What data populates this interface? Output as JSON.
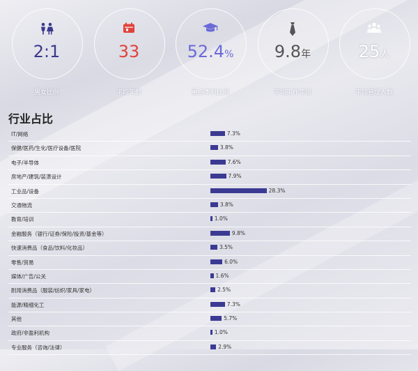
{
  "stats": [
    {
      "icon": "gender-icon",
      "value": "2:1",
      "unit": "",
      "label": "男女比例",
      "color": "#3a3a8c"
    },
    {
      "icon": "calendar-icon",
      "value": "33",
      "unit": "",
      "label": "平均年龄",
      "color": "#e0423c"
    },
    {
      "icon": "graduation-cap-icon",
      "value": "52.4",
      "unit": "%",
      "label": "重点本科比例",
      "color": "#6a6ad8"
    },
    {
      "icon": "tie-icon",
      "value": "9.8",
      "unit": "年",
      "label": "平均工作年限",
      "color": "#555555"
    },
    {
      "icon": "team-icon",
      "value": "25",
      "unit": "人",
      "label": "平均管理人数",
      "color": "#ffffff"
    }
  ],
  "accent_color": "#3b3a93",
  "chart_data": {
    "type": "bar",
    "title": "行业占比",
    "orientation": "horizontal",
    "categories": [
      "IT/网络",
      "保健/医药/生化/医疗设备/医院",
      "电子/半导体",
      "房地产/建筑/装潢设计",
      "工业品/设备",
      "交通物流",
      "教育/培训",
      "金融服务（银行/证券/保险/投资/基金等）",
      "快速消费品（食品/饮料/化妆品）",
      "零售/贸易",
      "媒体/广告/公关",
      "耐用消费品（服装/纺织/家具/家电）",
      "能源/精细化工",
      "其他",
      "政府/非盈利机构",
      "专业服务（咨询/法律）"
    ],
    "values": [
      7.3,
      3.8,
      7.6,
      7.9,
      28.3,
      3.8,
      1.0,
      9.8,
      3.5,
      6.0,
      1.6,
      2.5,
      7.3,
      5.7,
      1.0,
      2.9
    ],
    "value_labels": [
      "7.3%",
      "3.8%",
      "7.6%",
      "7.9%",
      "28.3%",
      "3.8%",
      "1.0%",
      "9.8%",
      "3.5%",
      "6.0%",
      "1.6%",
      "2.5%",
      "7.3%",
      "5.7%",
      "1.0%",
      "2.9%"
    ],
    "unit": "%",
    "xlim": [
      0,
      100
    ],
    "grid": false,
    "legend": "none"
  }
}
